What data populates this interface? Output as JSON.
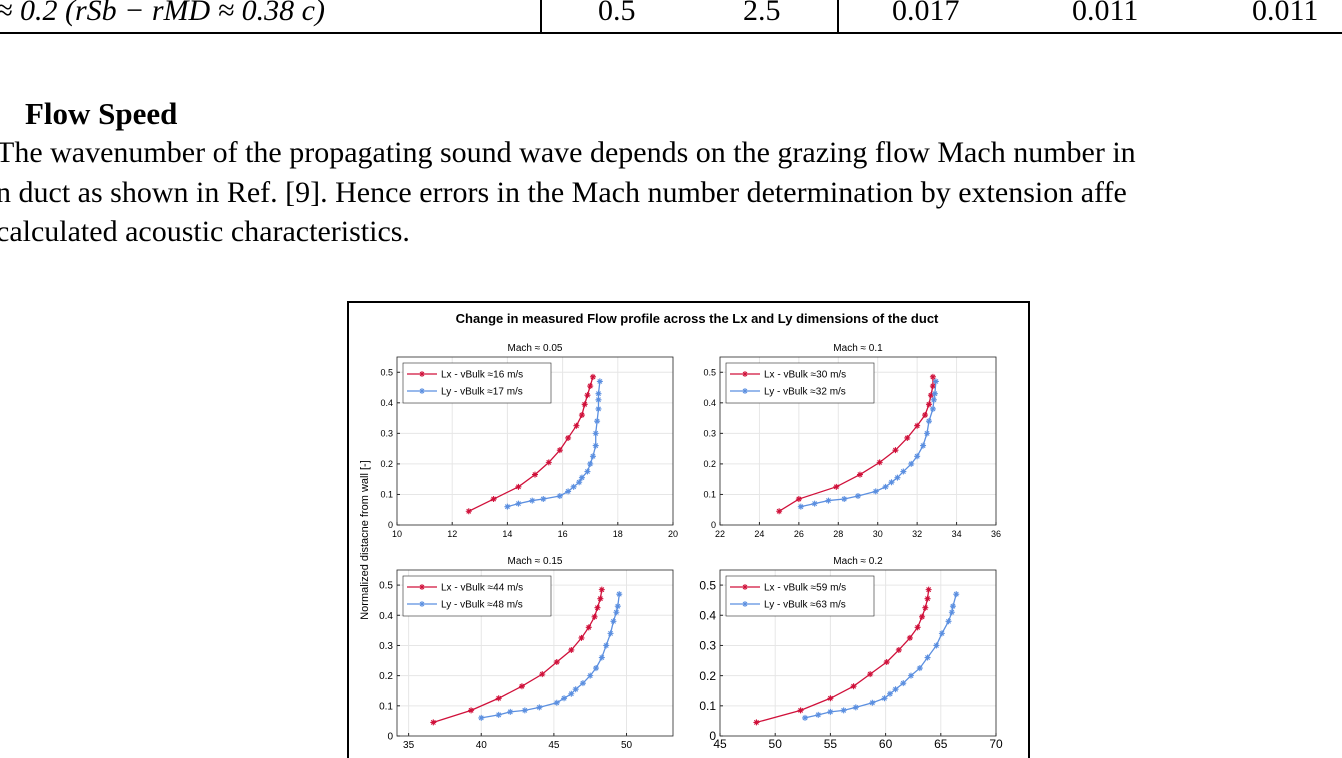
{
  "table": {
    "row": [
      "≈ 0.2 (rSb − rMD ≈ 0.38 c)",
      "0.5",
      "2.5",
      "0.017",
      "0.011",
      "0.011"
    ]
  },
  "section": {
    "heading": "Flow Speed",
    "lines": [
      "The wavenumber of the propagating sound wave depends on the grazing flow Mach number in",
      "n duct as shown in Ref. [9]. Hence errors in the Mach number determination by extension affe",
      "calculated acoustic characteristics."
    ]
  },
  "figure": {
    "title": "Change in measured Flow profile across the Lx and Ly dimensions of the duct",
    "ylabel": "Normalized distacne from wall [-]"
  },
  "chart_data": [
    {
      "type": "line",
      "title": "Mach ≈ 0.05",
      "xlim": [
        10,
        20
      ],
      "ylim": [
        0,
        0.55
      ],
      "xticks": [
        10,
        12,
        14,
        16,
        18,
        20
      ],
      "yticks": [
        0,
        0.1,
        0.2,
        0.3,
        0.4,
        0.5
      ],
      "grid": true,
      "legend": "upper left",
      "series": [
        {
          "name": "Lx - vBulk ≈16 m/s",
          "color": "#d0103a",
          "x": [
            12.6,
            13.5,
            14.4,
            15.0,
            15.5,
            15.9,
            16.2,
            16.5,
            16.7,
            16.8,
            16.9,
            17.0,
            17.1
          ],
          "values": [
            0.045,
            0.085,
            0.125,
            0.165,
            0.205,
            0.245,
            0.285,
            0.325,
            0.36,
            0.395,
            0.425,
            0.455,
            0.485
          ]
        },
        {
          "name": "Ly - vBulk ≈17 m/s",
          "color": "#5b8fe0",
          "x": [
            14.0,
            14.4,
            14.9,
            15.3,
            15.9,
            16.2,
            16.4,
            16.6,
            16.7,
            16.9,
            17.0,
            17.1,
            17.2,
            17.2,
            17.25,
            17.3,
            17.3,
            17.3,
            17.35
          ],
          "values": [
            0.06,
            0.07,
            0.08,
            0.085,
            0.095,
            0.11,
            0.125,
            0.14,
            0.155,
            0.175,
            0.2,
            0.225,
            0.26,
            0.3,
            0.34,
            0.38,
            0.41,
            0.43,
            0.47
          ]
        }
      ]
    },
    {
      "type": "line",
      "title": "Mach ≈ 0.1",
      "xlim": [
        22,
        36
      ],
      "ylim": [
        0,
        0.55
      ],
      "xticks": [
        22,
        24,
        26,
        28,
        30,
        32,
        34,
        36
      ],
      "yticks": [
        0,
        0.1,
        0.2,
        0.3,
        0.4,
        0.5
      ],
      "grid": true,
      "legend": "upper left",
      "series": [
        {
          "name": "Lx - vBulk ≈30 m/s",
          "color": "#d0103a",
          "x": [
            25.0,
            26.0,
            27.9,
            29.1,
            30.1,
            30.9,
            31.5,
            32.0,
            32.4,
            32.6,
            32.7,
            32.8,
            32.8
          ],
          "values": [
            0.045,
            0.085,
            0.125,
            0.165,
            0.205,
            0.245,
            0.285,
            0.325,
            0.36,
            0.395,
            0.425,
            0.455,
            0.485
          ]
        },
        {
          "name": "Ly - vBulk ≈32 m/s",
          "color": "#5b8fe0",
          "x": [
            26.1,
            26.8,
            27.5,
            28.3,
            29.0,
            29.9,
            30.4,
            30.7,
            31.0,
            31.3,
            31.7,
            32.0,
            32.3,
            32.5,
            32.6,
            32.8,
            32.85,
            32.9,
            32.95
          ],
          "values": [
            0.06,
            0.07,
            0.08,
            0.085,
            0.095,
            0.11,
            0.125,
            0.14,
            0.155,
            0.175,
            0.2,
            0.225,
            0.26,
            0.3,
            0.34,
            0.38,
            0.41,
            0.43,
            0.47
          ]
        }
      ]
    },
    {
      "type": "line",
      "title": "Mach ≈ 0.15",
      "xlim": [
        34.2,
        53.2
      ],
      "ylim": [
        0,
        0.55
      ],
      "xticks": [
        35,
        40,
        45,
        50
      ],
      "yticks": [
        0,
        0.1,
        0.2,
        0.3,
        0.4,
        0.5
      ],
      "grid": true,
      "legend": "upper left",
      "series": [
        {
          "name": "Lx - vBulk ≈44 m/s",
          "color": "#d0103a",
          "x": [
            36.7,
            39.3,
            41.2,
            42.8,
            44.2,
            45.2,
            46.2,
            46.9,
            47.4,
            47.8,
            48.0,
            48.2,
            48.3
          ],
          "values": [
            0.045,
            0.085,
            0.125,
            0.165,
            0.205,
            0.245,
            0.285,
            0.325,
            0.36,
            0.395,
            0.425,
            0.455,
            0.485
          ]
        },
        {
          "name": "Ly - vBulk ≈48 m/s",
          "color": "#5b8fe0",
          "x": [
            40.0,
            41.2,
            42.0,
            43.0,
            44.0,
            45.2,
            45.7,
            46.2,
            46.5,
            47.0,
            47.5,
            47.9,
            48.3,
            48.6,
            48.9,
            49.1,
            49.3,
            49.4,
            49.5
          ],
          "values": [
            0.06,
            0.07,
            0.08,
            0.085,
            0.095,
            0.11,
            0.125,
            0.14,
            0.155,
            0.175,
            0.2,
            0.225,
            0.26,
            0.3,
            0.34,
            0.38,
            0.41,
            0.43,
            0.47
          ]
        }
      ]
    },
    {
      "type": "line",
      "title": "Mach ≈ 0.2",
      "xlim": [
        45,
        70
      ],
      "ylim": [
        0,
        0.55
      ],
      "xticks": [
        45,
        50,
        55,
        60,
        65,
        70
      ],
      "yticks": [
        0,
        0.1,
        0.2,
        0.3,
        0.4,
        0.5
      ],
      "grid": true,
      "legend": "upper left",
      "series": [
        {
          "name": "Lx - vBulk ≈59 m/s",
          "color": "#d0103a",
          "x": [
            48.3,
            52.3,
            55.0,
            57.1,
            58.6,
            60.1,
            61.2,
            62.2,
            62.9,
            63.3,
            63.6,
            63.8,
            63.9
          ],
          "values": [
            0.045,
            0.085,
            0.125,
            0.165,
            0.205,
            0.245,
            0.285,
            0.325,
            0.36,
            0.395,
            0.425,
            0.455,
            0.485
          ]
        },
        {
          "name": "Ly - vBulk ≈63 m/s",
          "color": "#5b8fe0",
          "x": [
            52.7,
            53.9,
            55.0,
            56.2,
            57.3,
            58.8,
            59.9,
            60.4,
            60.9,
            61.6,
            62.3,
            63.1,
            63.8,
            64.6,
            65.1,
            65.7,
            66.0,
            66.1,
            66.4
          ],
          "values": [
            0.06,
            0.07,
            0.08,
            0.085,
            0.095,
            0.11,
            0.125,
            0.14,
            0.155,
            0.175,
            0.2,
            0.225,
            0.26,
            0.3,
            0.34,
            0.38,
            0.41,
            0.43,
            0.47
          ]
        }
      ]
    }
  ]
}
